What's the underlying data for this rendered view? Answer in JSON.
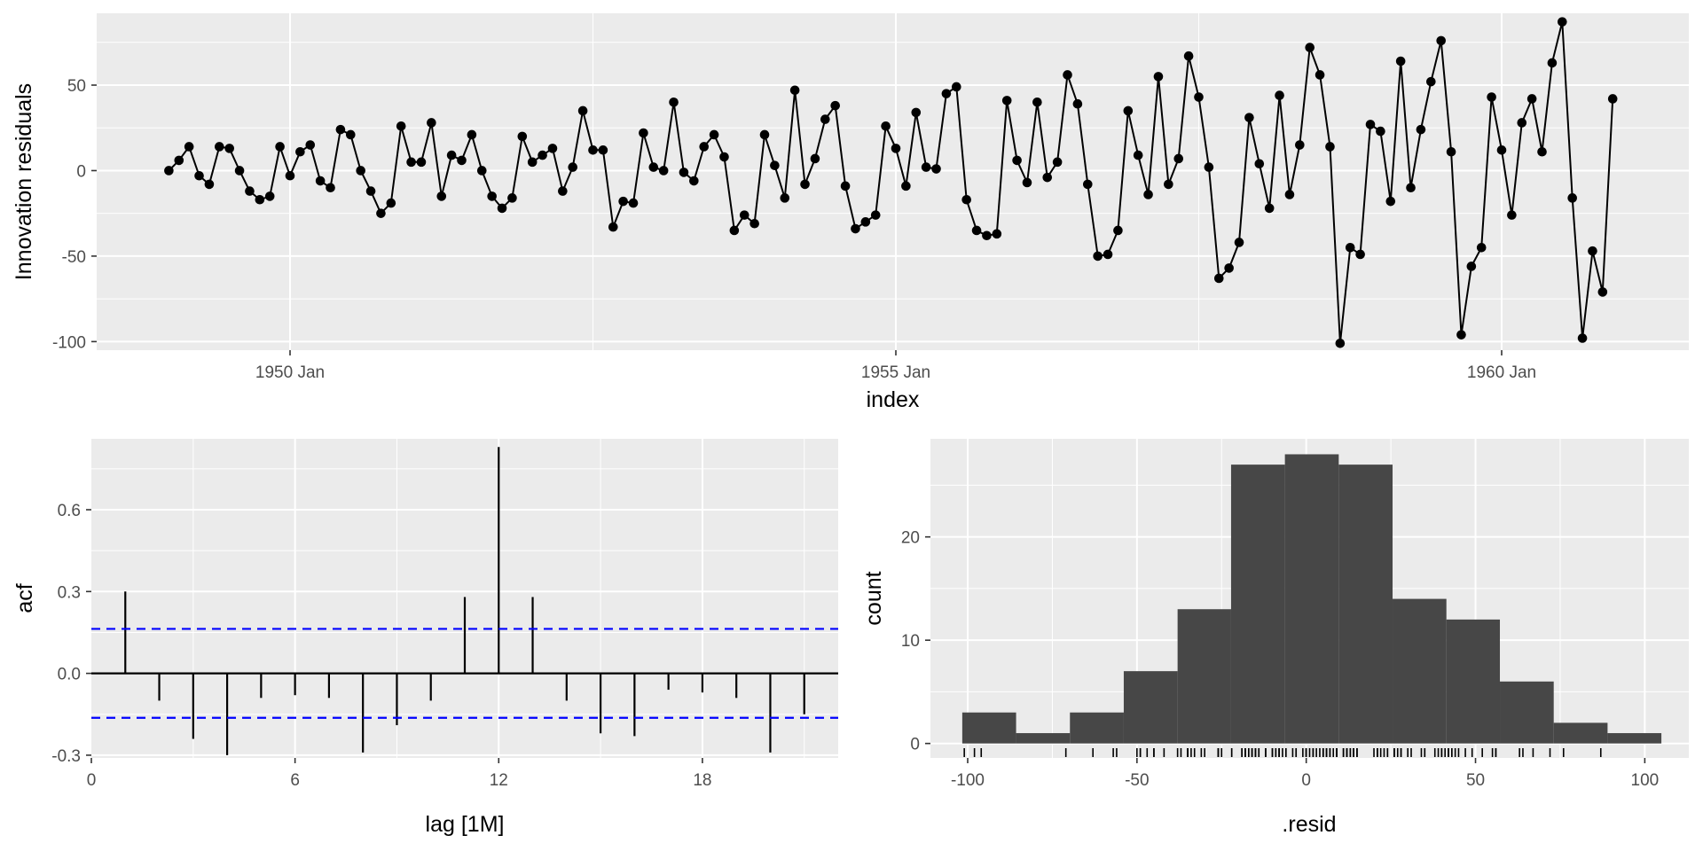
{
  "chart_data": [
    {
      "type": "line",
      "panel": "residuals-time-series",
      "ylabel": "Innovation residuals",
      "xlabel": "index",
      "x_start": "1949 Jan",
      "x_frequency": "monthly",
      "x_tick_labels": [
        "1950 Jan",
        "1955 Jan",
        "1960 Jan"
      ],
      "y_tick_labels": [
        "50",
        "0",
        "-50",
        "-100"
      ],
      "y_ticks": [
        50,
        0,
        -50,
        -100
      ],
      "ylim": [
        -105,
        92
      ],
      "grid": true,
      "values": [
        0,
        6,
        14,
        -3,
        -8,
        14,
        13,
        0,
        -12,
        -17,
        -15,
        14,
        -3,
        11,
        15,
        -6,
        -10,
        24,
        21,
        0,
        -12,
        -25,
        -19,
        26,
        5,
        5,
        28,
        -15,
        9,
        6,
        21,
        0,
        -15,
        -22,
        -16,
        20,
        5,
        9,
        13,
        -12,
        2,
        35,
        12,
        12,
        -33,
        -18,
        -19,
        22,
        2,
        0,
        40,
        -1,
        -6,
        14,
        21,
        8,
        -35,
        -26,
        -31,
        21,
        3,
        -16,
        47,
        -8,
        7,
        30,
        38,
        -9,
        -34,
        -30,
        -26,
        26,
        13,
        -9,
        34,
        2,
        1,
        45,
        49,
        -17,
        -35,
        -38,
        -37,
        41,
        6,
        -7,
        40,
        -4,
        5,
        56,
        39,
        -8,
        -50,
        -49,
        -35,
        35,
        9,
        -14,
        55,
        -8,
        7,
        67,
        43,
        2,
        -63,
        -57,
        -42,
        31,
        4,
        -22,
        44,
        -14,
        15,
        72,
        56,
        14,
        -101,
        -45,
        -49,
        27,
        23,
        -18,
        64,
        -10,
        24,
        52,
        76,
        11,
        -96,
        -56,
        -45,
        43,
        12,
        -26,
        28,
        42,
        11,
        63,
        87,
        -16,
        -98,
        -47,
        -71,
        42
      ]
    },
    {
      "type": "bar",
      "panel": "acf",
      "ylabel": "acf",
      "xlabel": "lag [1M]",
      "lags": [
        1,
        2,
        3,
        4,
        5,
        6,
        7,
        8,
        9,
        10,
        11,
        12,
        13,
        14,
        15,
        16,
        17,
        18,
        19,
        20,
        21
      ],
      "values": [
        0.3,
        -0.1,
        -0.24,
        -0.3,
        -0.09,
        -0.08,
        -0.09,
        -0.29,
        -0.19,
        -0.1,
        0.28,
        0.83,
        0.28,
        -0.1,
        -0.22,
        -0.23,
        -0.06,
        -0.07,
        -0.09,
        -0.29,
        -0.15
      ],
      "ci": 0.163,
      "x_ticks": [
        0,
        6,
        12,
        18
      ],
      "x_tick_labels": [
        "0",
        "6",
        "12",
        "18"
      ],
      "y_ticks": [
        -0.3,
        0.0,
        0.3,
        0.6
      ],
      "y_tick_labels": [
        "-0.3",
        "0.0",
        "0.3",
        "0.6"
      ],
      "xlim": [
        0,
        22
      ],
      "ylim": [
        -0.31,
        0.86
      ],
      "grid": true,
      "ci_line_color": "#0000ff"
    },
    {
      "type": "histogram",
      "panel": "residual-histogram",
      "ylabel": "count",
      "xlabel": ".resid",
      "bin_edges": [
        -101.6,
        -85.7,
        -69.8,
        -53.9,
        -38.0,
        -22.2,
        -6.3,
        9.6,
        25.5,
        41.4,
        57.2,
        73.1,
        89.0,
        104.9
      ],
      "counts": [
        3,
        1,
        3,
        7,
        13,
        27,
        28,
        27,
        14,
        12,
        6,
        2,
        1
      ],
      "x_ticks": [
        -100,
        -50,
        0,
        50,
        100
      ],
      "x_tick_labels": [
        "-100",
        "-50",
        "0",
        "50",
        "100"
      ],
      "y_ticks": [
        0,
        10,
        20
      ],
      "y_tick_labels": [
        "0",
        "10",
        "20"
      ],
      "xlim": [
        -111,
        113
      ],
      "ylim": [
        -1.4,
        29.5
      ],
      "bar_color": "#474747",
      "rug": true,
      "grid": true
    }
  ],
  "colors": {
    "panel_bg": "#ebebeb",
    "grid_major": "#ffffff",
    "line": "#000000",
    "ci_line": "#0000ff",
    "bar_fill": "#474747"
  }
}
